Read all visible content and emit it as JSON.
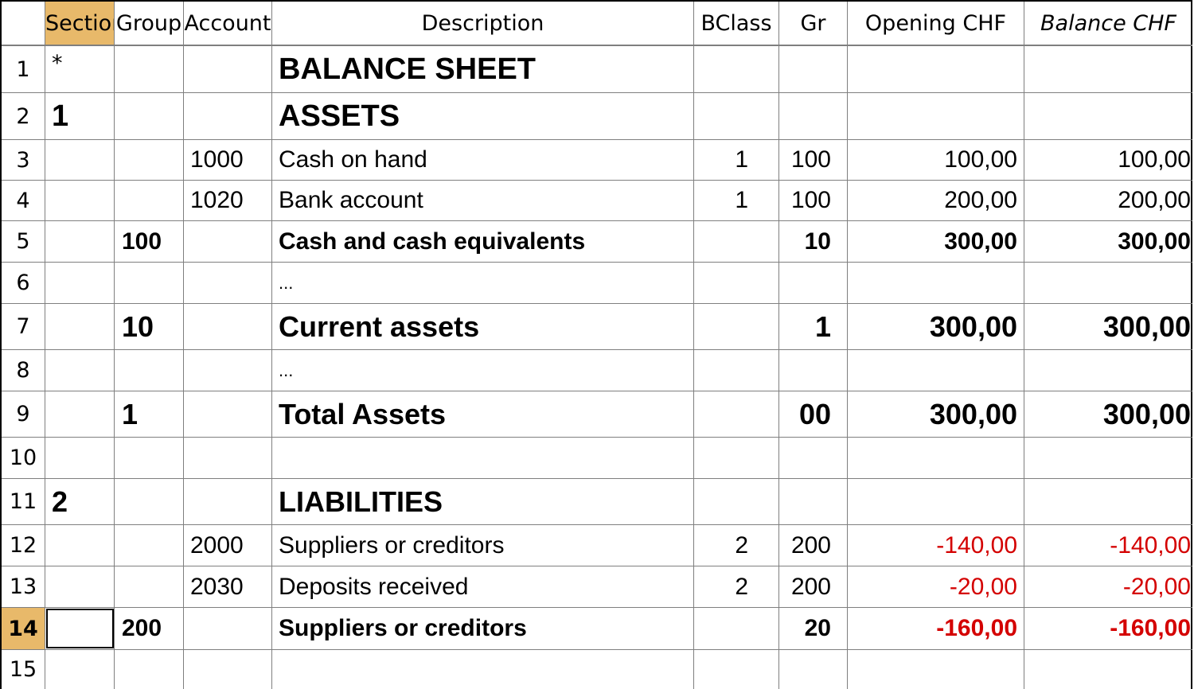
{
  "headers": {
    "section": "Sectior",
    "group": "Group",
    "account": "Account",
    "description": "Description",
    "bclass": "BClass",
    "gr": "Gr",
    "opening": "Opening CHF",
    "balance": "Balance CHF"
  },
  "rows": [
    {
      "num": "1",
      "section": "*",
      "group": "",
      "account": "",
      "description": "BALANCE SHEET",
      "bclass": "",
      "gr": "",
      "opening": "",
      "balance": ""
    },
    {
      "num": "2",
      "section": "1",
      "group": "",
      "account": "",
      "description": "ASSETS",
      "bclass": "",
      "gr": "",
      "opening": "",
      "balance": ""
    },
    {
      "num": "3",
      "section": "",
      "group": "",
      "account": "1000",
      "description": "Cash on hand",
      "bclass": "1",
      "gr": "100",
      "opening": "100,00",
      "balance": "100,00"
    },
    {
      "num": "4",
      "section": "",
      "group": "",
      "account": "1020",
      "description": "Bank account",
      "bclass": "1",
      "gr": "100",
      "opening": "200,00",
      "balance": "200,00"
    },
    {
      "num": "5",
      "section": "",
      "group": "100",
      "account": "",
      "description": "Cash and cash equivalents",
      "bclass": "",
      "gr": "10",
      "opening": "300,00",
      "balance": "300,00"
    },
    {
      "num": "6",
      "section": "",
      "group": "",
      "account": "",
      "description": "...",
      "bclass": "",
      "gr": "",
      "opening": "",
      "balance": ""
    },
    {
      "num": "7",
      "section": "",
      "group": "10",
      "account": "",
      "description": "Current assets",
      "bclass": "",
      "gr": "1",
      "opening": "300,00",
      "balance": "300,00"
    },
    {
      "num": "8",
      "section": "",
      "group": "",
      "account": "",
      "description": "...",
      "bclass": "",
      "gr": "",
      "opening": "",
      "balance": ""
    },
    {
      "num": "9",
      "section": "",
      "group": "1",
      "account": "",
      "description": "Total Assets",
      "bclass": "",
      "gr": "00",
      "opening": "300,00",
      "balance": "300,00"
    },
    {
      "num": "10",
      "section": "",
      "group": "",
      "account": "",
      "description": "",
      "bclass": "",
      "gr": "",
      "opening": "",
      "balance": ""
    },
    {
      "num": "11",
      "section": "2",
      "group": "",
      "account": "",
      "description": "LIABILITIES",
      "bclass": "",
      "gr": "",
      "opening": "",
      "balance": ""
    },
    {
      "num": "12",
      "section": "",
      "group": "",
      "account": "2000",
      "description": "Suppliers or creditors",
      "bclass": "2",
      "gr": "200",
      "opening": "-140,00",
      "balance": "-140,00"
    },
    {
      "num": "13",
      "section": "",
      "group": "",
      "account": "2030",
      "description": "Deposits received",
      "bclass": "2",
      "gr": "200",
      "opening": "-20,00",
      "balance": "-20,00"
    },
    {
      "num": "14",
      "section": "",
      "group": "200",
      "account": "",
      "description": "Suppliers or creditors",
      "bclass": "",
      "gr": "20",
      "opening": "-160,00",
      "balance": "-160,00"
    },
    {
      "num": "15",
      "section": "",
      "group": "",
      "account": "",
      "description": "",
      "bclass": "",
      "gr": "",
      "opening": "",
      "balance": ""
    }
  ],
  "colors": {
    "selection_highlight": "#e8b96a",
    "negative": "#d40000",
    "grid": "#7f7f7f"
  }
}
